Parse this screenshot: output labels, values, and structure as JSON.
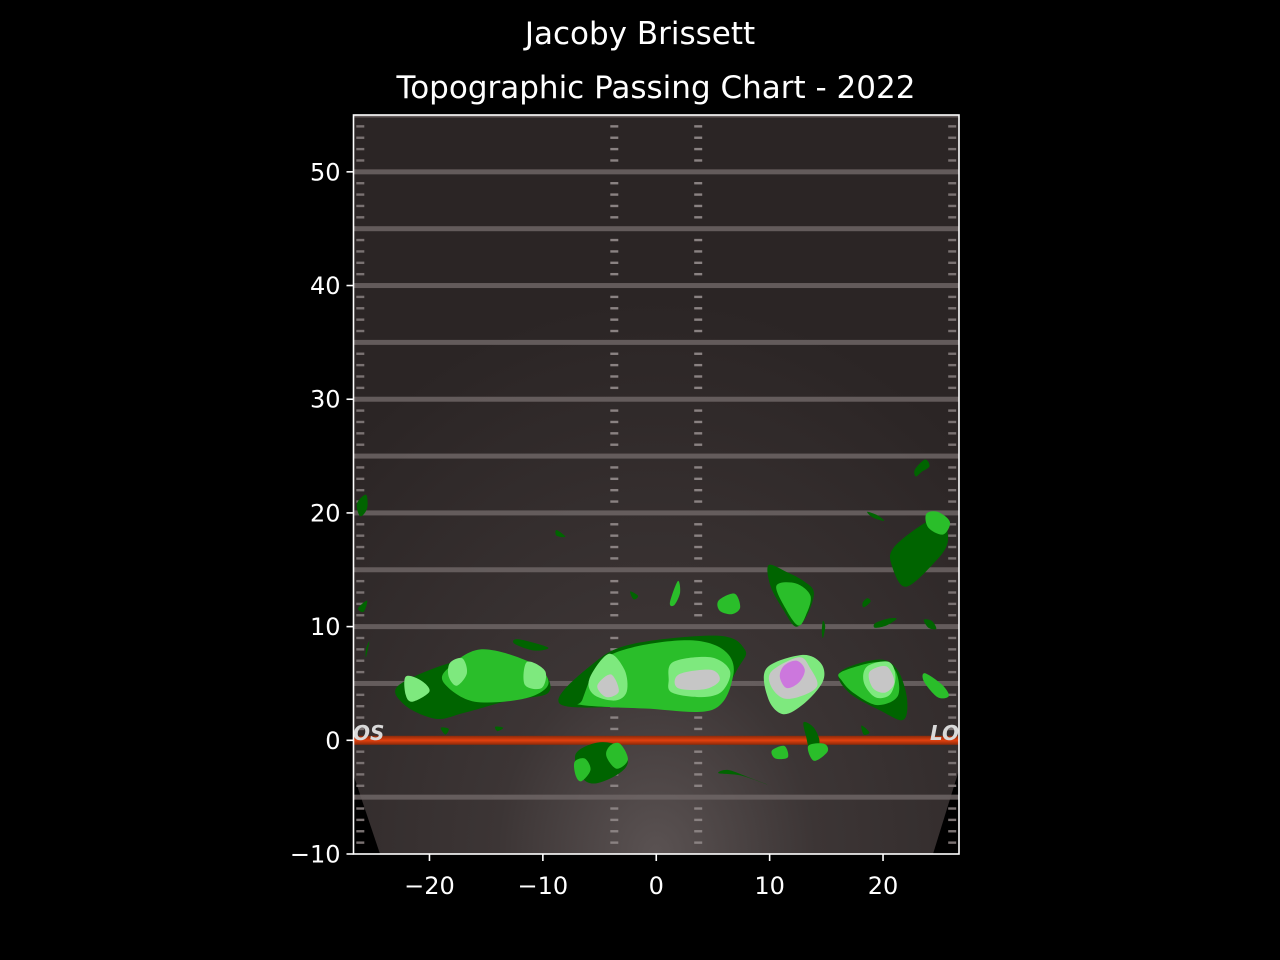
{
  "chart_data": {
    "type": "contour",
    "title": "Jacoby Brissett",
    "subtitle": "Topographic Passing Chart - 2022",
    "xlabel": "",
    "ylabel": "",
    "xlim": [
      -26.7,
      26.7
    ],
    "ylim": [
      -10,
      55
    ],
    "x_ticks": [
      {
        "value": -20,
        "label": "−20"
      },
      {
        "value": -10,
        "label": "−10"
      },
      {
        "value": 0,
        "label": "0"
      },
      {
        "value": 10,
        "label": "10"
      },
      {
        "value": 20,
        "label": "20"
      }
    ],
    "y_ticks": [
      {
        "value": -10,
        "label": "−10"
      },
      {
        "value": 0,
        "label": "0"
      },
      {
        "value": 10,
        "label": "10"
      },
      {
        "value": 20,
        "label": "20"
      },
      {
        "value": 30,
        "label": "30"
      },
      {
        "value": 40,
        "label": "40"
      },
      {
        "value": 50,
        "label": "50"
      }
    ],
    "grid": false,
    "legend": "none",
    "line_of_scrimmage": 0,
    "line_of_scrimmage_label": "LOS",
    "yard_lines": [
      -5,
      5,
      10,
      15,
      20,
      25,
      30,
      35,
      40,
      45,
      50,
      55
    ],
    "hash_marks_x": [
      -3.7,
      3.7
    ],
    "contour_levels": [
      {
        "level": 1,
        "color": "#006400"
      },
      {
        "level": 2,
        "color": "#2abe2a"
      },
      {
        "level": 3,
        "color": "#7ee97e"
      },
      {
        "level": 4,
        "color": "#c6c6c6"
      },
      {
        "level": 5,
        "color": "#cc77dd"
      }
    ],
    "regions": [
      {
        "level": 1,
        "points": [
          [
            -22.5,
            5.0
          ],
          [
            -16,
            7.3
          ],
          [
            -10.5,
            6.3
          ],
          [
            -9.5,
            4.2
          ],
          [
            -13,
            3.5
          ],
          [
            -17,
            2.4
          ],
          [
            -19.5,
            1.9
          ],
          [
            -22.3,
            3.2
          ]
        ]
      },
      {
        "level": 2,
        "points": [
          [
            -18.5,
            6.2
          ],
          [
            -15.5,
            8.0
          ],
          [
            -11,
            6.8
          ],
          [
            -9.5,
            5.0
          ],
          [
            -11.5,
            3.7
          ],
          [
            -16,
            3.4
          ],
          [
            -18.6,
            4.9
          ]
        ]
      },
      {
        "level": 3,
        "points": [
          [
            -22.1,
            5.6
          ],
          [
            -20.8,
            5.3
          ],
          [
            -20.0,
            4.3
          ],
          [
            -21.5,
            3.4
          ],
          [
            -22.1,
            4.0
          ]
        ]
      },
      {
        "level": 3,
        "points": [
          [
            -18.2,
            6.8
          ],
          [
            -17.1,
            7.2
          ],
          [
            -16.7,
            5.9
          ],
          [
            -17.6,
            4.8
          ],
          [
            -18.3,
            5.6
          ]
        ]
      },
      {
        "level": 3,
        "points": [
          [
            -11.4,
            6.9
          ],
          [
            -9.8,
            6.1
          ],
          [
            -10.1,
            4.6
          ],
          [
            -11.6,
            4.9
          ]
        ]
      },
      {
        "level": 1,
        "points": [
          [
            -8.5,
            3.2
          ],
          [
            -5.5,
            6.8
          ],
          [
            -2,
            8.5
          ],
          [
            5.5,
            9.2
          ],
          [
            7.8,
            8.0
          ],
          [
            7.3,
            6.5
          ],
          [
            4.5,
            2.8
          ],
          [
            -1,
            3.0
          ]
        ]
      },
      {
        "level": 2,
        "points": [
          [
            -6.5,
            3.6
          ],
          [
            -5,
            6.8
          ],
          [
            -2,
            8.2
          ],
          [
            3,
            8.8
          ],
          [
            6.0,
            7.9
          ],
          [
            6.8,
            5.8
          ],
          [
            5,
            2.7
          ],
          [
            -1,
            2.8
          ],
          [
            -6.5,
            3.1
          ]
        ]
      },
      {
        "level": 3,
        "points": [
          [
            -5.9,
            5.4
          ],
          [
            -4.2,
            7.6
          ],
          [
            -2.8,
            6.2
          ],
          [
            -2.6,
            4.3
          ],
          [
            -3.6,
            3.5
          ],
          [
            -5.5,
            4.0
          ]
        ]
      },
      {
        "level": 3,
        "points": [
          [
            1.5,
            6.9
          ],
          [
            4.8,
            7.3
          ],
          [
            6.5,
            6.1
          ],
          [
            5.8,
            4.3
          ],
          [
            4.0,
            3.8
          ],
          [
            1.4,
            4.2
          ],
          [
            1.1,
            5.3
          ]
        ]
      },
      {
        "level": 4,
        "points": [
          [
            -5.2,
            4.8
          ],
          [
            -4.0,
            5.8
          ],
          [
            -3.3,
            4.3
          ],
          [
            -4.4,
            3.8
          ]
        ]
      },
      {
        "level": 4,
        "points": [
          [
            2.0,
            5.8
          ],
          [
            4.8,
            6.2
          ],
          [
            5.6,
            5.3
          ],
          [
            4.3,
            4.5
          ],
          [
            1.9,
            4.6
          ]
        ]
      },
      {
        "level": 3,
        "points": [
          [
            9.7,
            6.3
          ],
          [
            12.8,
            7.5
          ],
          [
            14.5,
            6.8
          ],
          [
            14.7,
            5.2
          ],
          [
            13,
            3.2
          ],
          [
            11.2,
            2.3
          ],
          [
            9.9,
            3.6
          ]
        ]
      },
      {
        "level": 4,
        "points": [
          [
            10.2,
            6.1
          ],
          [
            12.6,
            7.3
          ],
          [
            13.6,
            6.3
          ],
          [
            14.2,
            4.8
          ],
          [
            12.8,
            3.9
          ],
          [
            11.2,
            3.7
          ],
          [
            10.1,
            4.8
          ]
        ]
      },
      {
        "level": 5,
        "points": [
          [
            11.3,
            6.6
          ],
          [
            12.4,
            7.0
          ],
          [
            13.1,
            6.2
          ],
          [
            12.6,
            5.1
          ],
          [
            11.5,
            4.6
          ],
          [
            10.9,
            5.6
          ]
        ]
      },
      {
        "level": 1,
        "points": [
          [
            16.2,
            6.0
          ],
          [
            19.5,
            7.1
          ],
          [
            21.2,
            6.3
          ],
          [
            22.1,
            3.8
          ],
          [
            21.8,
            1.8
          ],
          [
            19.8,
            2.6
          ],
          [
            17,
            4.2
          ]
        ]
      },
      {
        "level": 2,
        "points": [
          [
            16.3,
            6.0
          ],
          [
            19.6,
            6.9
          ],
          [
            21.1,
            6.1
          ],
          [
            21.3,
            3.9
          ],
          [
            19.5,
            3.1
          ],
          [
            17.5,
            4.1
          ],
          [
            16.4,
            5.2
          ]
        ]
      },
      {
        "level": 3,
        "points": [
          [
            18.6,
            6.5
          ],
          [
            20.5,
            6.9
          ],
          [
            21.1,
            5.6
          ],
          [
            20.6,
            4.0
          ],
          [
            19.3,
            3.8
          ],
          [
            18.3,
            5.1
          ]
        ]
      },
      {
        "level": 4,
        "points": [
          [
            18.8,
            6.0
          ],
          [
            20.3,
            6.5
          ],
          [
            21.0,
            5.1
          ],
          [
            20.2,
            4.2
          ],
          [
            19.1,
            4.6
          ]
        ]
      },
      {
        "level": 1,
        "points": [
          [
            9.9,
            15.4
          ],
          [
            11.5,
            14.8
          ],
          [
            13,
            14.0
          ],
          [
            13.9,
            13.0
          ],
          [
            13.3,
            11.0
          ],
          [
            12.3,
            10.0
          ],
          [
            11.2,
            11.5
          ],
          [
            10.1,
            13.5
          ]
        ]
      },
      {
        "level": 2,
        "points": [
          [
            10.6,
            13.6
          ],
          [
            12.3,
            13.8
          ],
          [
            13.6,
            12.7
          ],
          [
            13.2,
            11.0
          ],
          [
            12.5,
            10.1
          ],
          [
            11.4,
            11.6
          ]
        ]
      },
      {
        "level": 1,
        "points": [
          [
            20.9,
            16.9
          ],
          [
            23.5,
            19.0
          ],
          [
            25.2,
            19.6
          ],
          [
            25.7,
            17.4
          ],
          [
            24.4,
            15.5
          ],
          [
            22.0,
            13.5
          ],
          [
            20.8,
            15.3
          ]
        ]
      },
      {
        "level": 2,
        "points": [
          [
            23.8,
            19.9
          ],
          [
            24.8,
            20.1
          ],
          [
            25.9,
            19.2
          ],
          [
            25.3,
            18.1
          ],
          [
            24.0,
            18.7
          ]
        ]
      },
      {
        "level": 1,
        "points": [
          [
            22.8,
            23.8
          ],
          [
            23.7,
            24.7
          ],
          [
            24.1,
            24.1
          ],
          [
            23.4,
            23.6
          ],
          [
            22.9,
            23.2
          ]
        ]
      },
      {
        "level": 1,
        "points": [
          [
            -26.4,
            20.8
          ],
          [
            -25.6,
            21.6
          ],
          [
            -25.5,
            20.4
          ],
          [
            -26.1,
            19.7
          ]
        ]
      },
      {
        "level": 1,
        "points": [
          [
            -26.3,
            11.6
          ],
          [
            -25.5,
            12.3
          ],
          [
            -25.8,
            11.3
          ]
        ]
      },
      {
        "level": 1,
        "points": [
          [
            -25.6,
            8.0
          ],
          [
            -25.3,
            8.7
          ],
          [
            -25.6,
            7.3
          ]
        ]
      },
      {
        "level": 1,
        "points": [
          [
            -8.8,
            18.5
          ],
          [
            -8.0,
            17.9
          ],
          [
            -8.8,
            18.0
          ]
        ]
      },
      {
        "level": 1,
        "points": [
          [
            -2.3,
            13.1
          ],
          [
            -1.6,
            12.7
          ],
          [
            -2.0,
            12.4
          ]
        ]
      },
      {
        "level": 2,
        "points": [
          [
            1.2,
            12.1
          ],
          [
            1.9,
            14.0
          ],
          [
            2.1,
            13.0
          ],
          [
            1.6,
            11.9
          ]
        ]
      },
      {
        "level": 2,
        "points": [
          [
            5.5,
            12.3
          ],
          [
            6.9,
            12.9
          ],
          [
            7.4,
            11.7
          ],
          [
            6.7,
            11.1
          ],
          [
            5.6,
            11.4
          ]
        ]
      },
      {
        "level": 1,
        "points": [
          [
            14.6,
            9.6
          ],
          [
            14.7,
            10.5
          ],
          [
            14.9,
            10.0
          ],
          [
            14.7,
            9.0
          ]
        ]
      },
      {
        "level": 1,
        "points": [
          [
            18.6,
            20.1
          ],
          [
            19.5,
            19.8
          ],
          [
            20.1,
            19.3
          ],
          [
            19.1,
            19.6
          ]
        ]
      },
      {
        "level": 1,
        "points": [
          [
            18.2,
            12.1
          ],
          [
            18.6,
            12.5
          ],
          [
            18.9,
            12.2
          ],
          [
            18.3,
            11.7
          ]
        ]
      },
      {
        "level": 1,
        "points": [
          [
            19.3,
            10.3
          ],
          [
            20.4,
            10.7
          ],
          [
            21.2,
            10.7
          ],
          [
            20.3,
            10.1
          ],
          [
            19.3,
            9.9
          ]
        ]
      },
      {
        "level": 1,
        "points": [
          [
            23.6,
            10.6
          ],
          [
            24.3,
            10.5
          ],
          [
            24.7,
            9.8
          ],
          [
            24.0,
            9.9
          ]
        ]
      },
      {
        "level": 2,
        "points": [
          [
            23.7,
            5.9
          ],
          [
            25.2,
            4.9
          ],
          [
            25.8,
            3.9
          ],
          [
            24.8,
            3.8
          ],
          [
            23.6,
            5.2
          ]
        ]
      },
      {
        "level": 1,
        "points": [
          [
            -12.3,
            8.9
          ],
          [
            -10.5,
            8.5
          ],
          [
            -9.5,
            8.1
          ],
          [
            -10.8,
            7.9
          ],
          [
            -12.5,
            8.5
          ]
        ]
      },
      {
        "level": 1,
        "points": [
          [
            -19.0,
            1.1
          ],
          [
            -18.3,
            1.0
          ],
          [
            -18.6,
            0.5
          ]
        ]
      },
      {
        "level": 1,
        "points": [
          [
            -14.2,
            1.2
          ],
          [
            -13.5,
            1.1
          ],
          [
            -14.0,
            0.8
          ]
        ]
      },
      {
        "level": 1,
        "points": [
          [
            -7.1,
            -1.2
          ],
          [
            -5.2,
            -0.2
          ],
          [
            -3.3,
            -0.5
          ],
          [
            -2.5,
            -1.9
          ],
          [
            -3.4,
            -3.0
          ],
          [
            -5.4,
            -3.8
          ],
          [
            -6.6,
            -3.2
          ]
        ]
      },
      {
        "level": 2,
        "points": [
          [
            -7.2,
            -1.9
          ],
          [
            -6.3,
            -1.6
          ],
          [
            -5.8,
            -2.6
          ],
          [
            -6.6,
            -3.6
          ],
          [
            -7.1,
            -3.1
          ]
        ]
      },
      {
        "level": 2,
        "points": [
          [
            -4.1,
            -0.5
          ],
          [
            -3.2,
            -0.3
          ],
          [
            -2.5,
            -1.7
          ],
          [
            -3.5,
            -2.5
          ],
          [
            -4.4,
            -1.4
          ]
        ]
      },
      {
        "level": 1,
        "points": [
          [
            5.5,
            -2.9
          ],
          [
            7.5,
            -3.1
          ],
          [
            9.8,
            -3.9
          ],
          [
            8.0,
            -3.2
          ],
          [
            6.3,
            -2.6
          ]
        ]
      },
      {
        "level": 2,
        "points": [
          [
            10.2,
            -0.9
          ],
          [
            11.3,
            -0.5
          ],
          [
            11.6,
            -1.5
          ],
          [
            10.5,
            -1.6
          ]
        ]
      },
      {
        "level": 1,
        "points": [
          [
            13.0,
            1.6
          ],
          [
            13.9,
            1.1
          ],
          [
            14.4,
            -0.2
          ],
          [
            13.6,
            -0.9
          ],
          [
            13.2,
            0.4
          ]
        ]
      },
      {
        "level": 2,
        "points": [
          [
            13.4,
            -0.5
          ],
          [
            14.8,
            -0.3
          ],
          [
            15.1,
            -1.0
          ],
          [
            13.9,
            -1.8
          ]
        ]
      },
      {
        "level": 1,
        "points": [
          [
            18.1,
            1.3
          ],
          [
            18.8,
            0.7
          ],
          [
            18.3,
            0.5
          ]
        ]
      }
    ]
  }
}
